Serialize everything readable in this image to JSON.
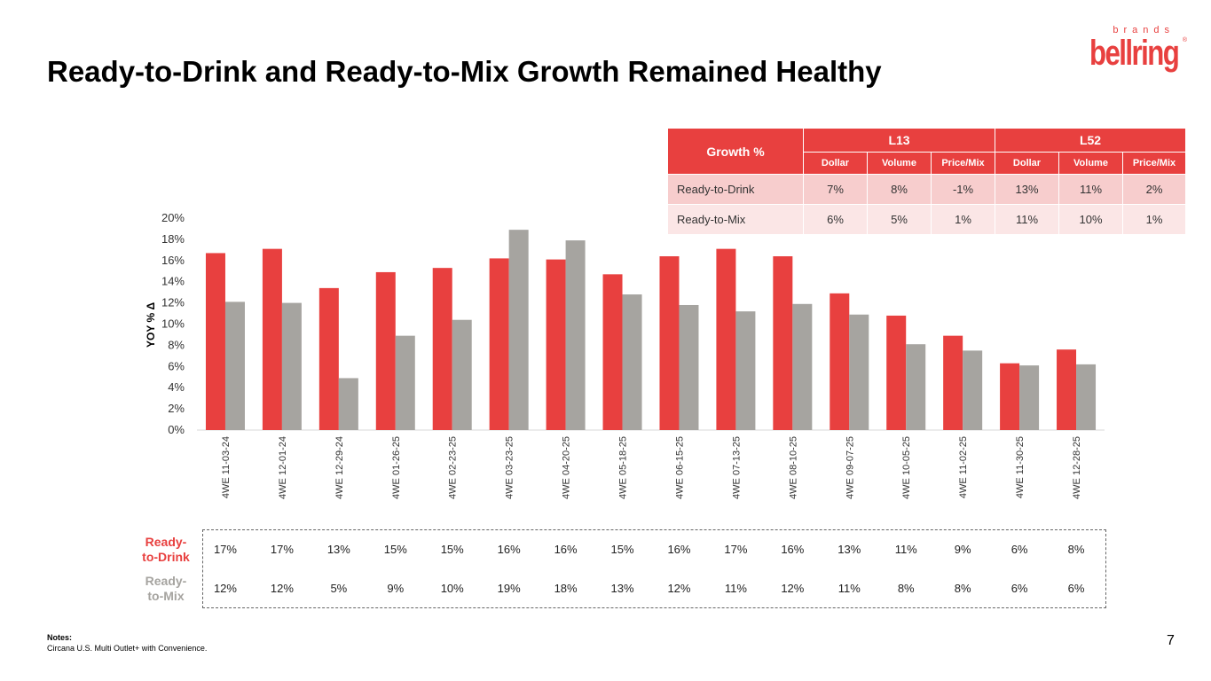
{
  "title": "Ready-to-Drink and Ready-to-Mix Growth Remained Healthy",
  "logo": {
    "sub": "brands",
    "main": "bellring",
    "reg": "®"
  },
  "growth_table": {
    "corner": "Growth %",
    "groups": [
      "L13",
      "L52"
    ],
    "columns": [
      "Dollar",
      "Volume",
      "Price/Mix",
      "Dollar",
      "Volume",
      "Price/Mix"
    ],
    "rows": [
      {
        "label": "Ready-to-Drink",
        "values": [
          "7%",
          "8%",
          "-1%",
          "13%",
          "11%",
          "2%"
        ]
      },
      {
        "label": "Ready-to-Mix",
        "values": [
          "6%",
          "5%",
          "1%",
          "11%",
          "10%",
          "1%"
        ]
      }
    ]
  },
  "colors": {
    "rtd": "#e8403f",
    "rtm": "#a6a4a0",
    "axis_text": "#333333"
  },
  "chart_data": {
    "type": "bar",
    "title": "",
    "xlabel": "",
    "ylabel": "YOY % Δ",
    "ylim": [
      0,
      20
    ],
    "yticks": [
      "0%",
      "2%",
      "4%",
      "6%",
      "8%",
      "10%",
      "12%",
      "14%",
      "16%",
      "18%",
      "20%"
    ],
    "categories": [
      "4WE 11-03-24",
      "4WE 12-01-24",
      "4WE 12-29-24",
      "4WE 01-26-25",
      "4WE 02-23-25",
      "4WE 03-23-25",
      "4WE 04-20-25",
      "4WE 05-18-25",
      "4WE 06-15-25",
      "4WE 07-13-25",
      "4WE 08-10-25",
      "4WE 09-07-25",
      "4WE 10-05-25",
      "4WE 11-02-25",
      "4WE 11-30-25",
      "4WE 12-28-25"
    ],
    "series": [
      {
        "name": "Ready-to-Drink",
        "values": [
          16.7,
          17.1,
          13.4,
          14.9,
          15.3,
          16.2,
          16.1,
          14.7,
          16.4,
          17.1,
          16.4,
          12.9,
          10.8,
          8.9,
          6.3,
          7.6
        ]
      },
      {
        "name": "Ready-to-Mix",
        "values": [
          12.1,
          12.0,
          4.9,
          8.9,
          10.4,
          18.9,
          17.9,
          12.8,
          11.8,
          11.2,
          11.9,
          10.9,
          8.1,
          7.5,
          6.1,
          6.2
        ]
      }
    ]
  },
  "data_labels": {
    "rtd_label": "Ready-\nto-Drink",
    "rtm_label": "Ready-\nto-Mix",
    "rtd": [
      "17%",
      "17%",
      "13%",
      "15%",
      "15%",
      "16%",
      "16%",
      "15%",
      "16%",
      "17%",
      "16%",
      "13%",
      "11%",
      "9%",
      "6%",
      "8%"
    ],
    "rtm": [
      "12%",
      "12%",
      "5%",
      "9%",
      "10%",
      "19%",
      "18%",
      "13%",
      "12%",
      "11%",
      "12%",
      "11%",
      "8%",
      "8%",
      "6%",
      "6%"
    ]
  },
  "notes": {
    "heading": "Notes:",
    "text": "Circana U.S. Multi Outlet+ with Convenience."
  },
  "page_number": "7"
}
